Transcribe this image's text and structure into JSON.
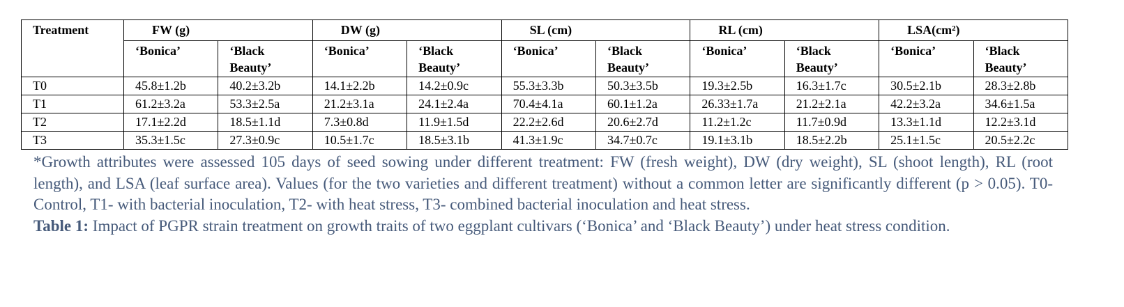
{
  "table": {
    "corner": "Treatment",
    "traits": [
      "FW (g)",
      "DW (g)",
      "SL (cm)",
      "RL (cm)",
      "LSA(cm²)"
    ],
    "varieties": [
      "‘Bonica’",
      "‘Black Beauty’",
      "‘Bonica’",
      "‘Black Beauty’",
      "‘Bonica’",
      "‘Black Beauty’",
      "‘Bonica’",
      "‘Black Beauty’",
      "‘Bonica’",
      "‘Black Beauty’"
    ],
    "rows": [
      [
        "T0",
        "45.8±1.2b",
        "40.2±3.2b",
        "14.1±2.2b",
        "14.2±0.9c",
        "55.3±3.3b",
        "50.3±3.5b",
        "19.3±2.5b",
        "16.3±1.7c",
        "30.5±2.1b",
        "28.3±2.8b"
      ],
      [
        "T1",
        "61.2±3.2a",
        "53.3±2.5a",
        "21.2±3.1a",
        "24.1±2.4a",
        "70.4±4.1a",
        "60.1±1.2a",
        "26.33±1.7a",
        "21.2±2.1a",
        "42.2±3.2a",
        "34.6±1.5a"
      ],
      [
        "T2",
        "17.1±2.2d",
        "18.5±1.1d",
        "7.3±0.8d",
        "11.9±1.5d",
        "22.2±2.6d",
        "20.6±2.7d",
        "11.2±1.2c",
        "11.7±0.9d",
        "13.3±1.1d",
        "12.2±3.1d"
      ],
      [
        "T3",
        "35.3±1.5c",
        "27.3±0.9c",
        "10.5±1.7c",
        "18.5±3.1b",
        "41.3±1.9c",
        "34.7±0.7c",
        "19.1±3.1b",
        "18.5±2.2b",
        "25.1±1.5c",
        "20.5±2.2c"
      ]
    ]
  },
  "footnote": "*Growth attributes were assessed 105 days of seed sowing under different treatment: FW (fresh weight), DW (dry weight), SL (shoot length), RL (root length), and LSA (leaf surface area). Values (for the two varieties and different treatment) without a common letter are significantly different (p > 0.05). T0- Control, T1- with bacterial inoculation, T2- with heat stress, T3- combined bacterial inoculation and heat stress.",
  "caption": {
    "label": "Table 1:",
    "text": "Impact of PGPR strain treatment on growth traits of two eggplant cultivars (‘Bonica’ and ‘Black Beauty’) under heat stress condition."
  }
}
